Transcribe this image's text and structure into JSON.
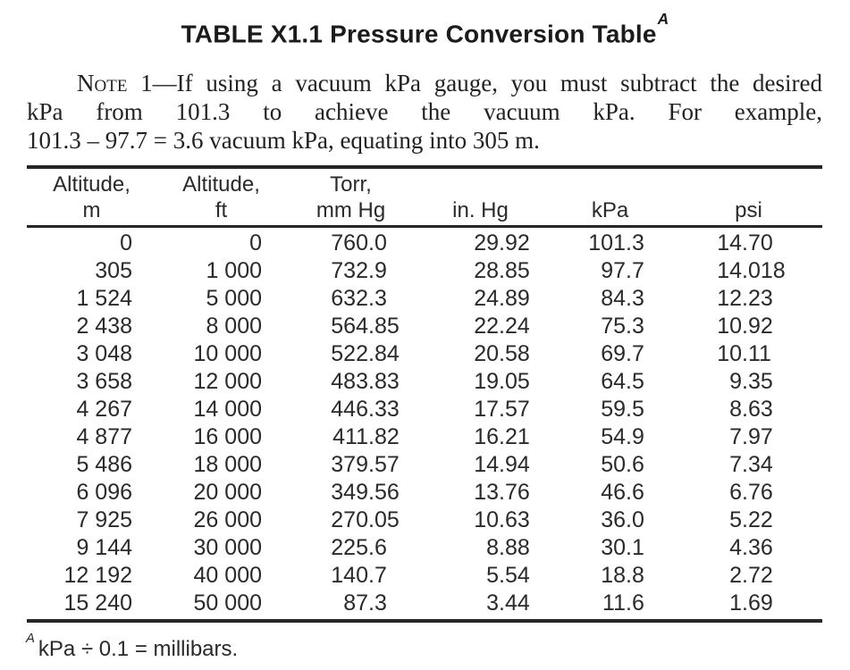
{
  "title": {
    "text": "TABLE X1.1 Pressure Conversion Table",
    "footnote_ref": "A"
  },
  "note": {
    "label": "Note",
    "line1_rest": "1—If using a vacuum kPa gauge, you must subtract the desired",
    "line2": "kPa from 101.3 to achieve the vacuum kPa. For example,",
    "line3": "101.3 – 97.7 = 3.6 vacuum kPa, equating into 305 m."
  },
  "table": {
    "columns": [
      {
        "line1": "Altitude,",
        "line2": "m"
      },
      {
        "line1": "Altitude,",
        "line2": "ft"
      },
      {
        "line1": "Torr,",
        "line2": "mm Hg"
      },
      {
        "line1": "",
        "line2": "in. Hg"
      },
      {
        "line1": "",
        "line2": "kPa"
      },
      {
        "line1": "",
        "line2": "psi"
      }
    ],
    "rows": [
      [
        "0",
        "0",
        "760.0",
        "29.92",
        "101.3",
        "14.70"
      ],
      [
        "305",
        "1 000",
        "732.9",
        "28.85",
        "97.7",
        "14.018"
      ],
      [
        "1 524",
        "5 000",
        "632.3",
        "24.89",
        "84.3",
        "12.23"
      ],
      [
        "2 438",
        "8 000",
        "564.85",
        "22.24",
        "75.3",
        "10.92"
      ],
      [
        "3 048",
        "10 000",
        "522.84",
        "20.58",
        "69.7",
        "10.11"
      ],
      [
        "3 658",
        "12 000",
        "483.83",
        "19.05",
        "64.5",
        "9.35"
      ],
      [
        "4 267",
        "14 000",
        "446.33",
        "17.57",
        "59.5",
        "8.63"
      ],
      [
        "4 877",
        "16 000",
        "411.82",
        "16.21",
        "54.9",
        "7.97"
      ],
      [
        "5 486",
        "18 000",
        "379.57",
        "14.94",
        "50.6",
        "7.34"
      ],
      [
        "6 096",
        "20 000",
        "349.56",
        "13.76",
        "46.6",
        "6.76"
      ],
      [
        "7 925",
        "26 000",
        "270.05",
        "10.63",
        "36.0",
        "5.22"
      ],
      [
        "9 144",
        "30 000",
        "225.6",
        "8.88",
        "30.1",
        "4.36"
      ],
      [
        "12 192",
        "40 000",
        "140.7",
        "5.54",
        "18.8",
        "2.72"
      ],
      [
        "15 240",
        "50 000",
        "87.3",
        "3.44",
        "11.6",
        "1.69"
      ]
    ]
  },
  "footnote": {
    "ref": "A",
    "text": "kPa ÷ 0.1 = millibars."
  }
}
